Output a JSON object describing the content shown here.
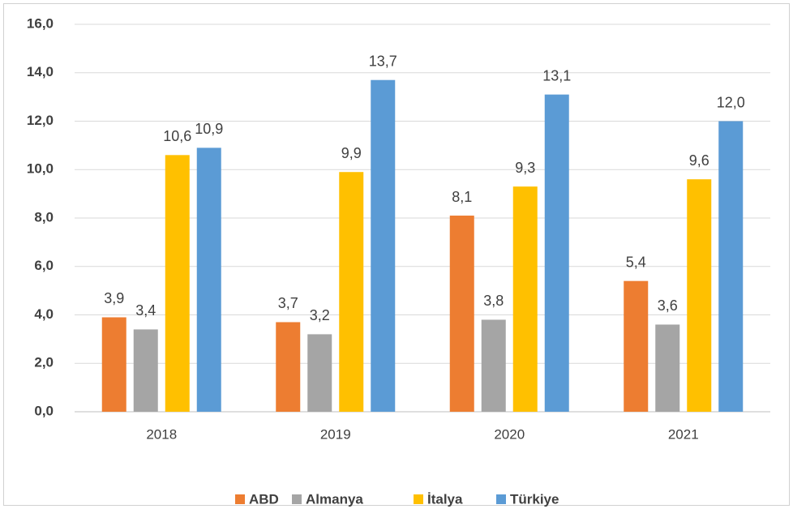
{
  "chart_data": {
    "type": "bar",
    "categories": [
      "2018",
      "2019",
      "2020",
      "2021"
    ],
    "series": [
      {
        "name": "ABD",
        "color": "#ed7d31",
        "values": [
          3.9,
          3.7,
          8.1,
          5.4
        ],
        "value_labels": [
          "3,9",
          "3,7",
          "8,1",
          "5,4"
        ]
      },
      {
        "name": "Almanya",
        "color": "#a5a5a5",
        "values": [
          3.4,
          3.2,
          3.8,
          3.6
        ],
        "value_labels": [
          "3,4",
          "3,2",
          "3,8",
          "3,6"
        ]
      },
      {
        "name": "İtalya",
        "color": "#ffc000",
        "values": [
          10.6,
          9.9,
          9.3,
          9.6
        ],
        "value_labels": [
          "10,6",
          "9,9",
          "9,3",
          "9,6"
        ]
      },
      {
        "name": "Türkiye",
        "color": "#5b9bd5",
        "values": [
          10.9,
          13.7,
          13.1,
          12.0
        ],
        "value_labels": [
          "10,9",
          "13,7",
          "13,1",
          "12,0"
        ]
      }
    ],
    "ylim": [
      0,
      16
    ],
    "yticks": [
      {
        "value": 0,
        "label": "0,0"
      },
      {
        "value": 2,
        "label": "2,0"
      },
      {
        "value": 4,
        "label": "4,0"
      },
      {
        "value": 6,
        "label": "6,0"
      },
      {
        "value": 8,
        "label": "8,0"
      },
      {
        "value": 10,
        "label": "10,0"
      },
      {
        "value": 12,
        "label": "12,0"
      },
      {
        "value": 14,
        "label": "14,0"
      },
      {
        "value": 16,
        "label": "16,0"
      }
    ],
    "grid": true,
    "legend": "bottom"
  }
}
